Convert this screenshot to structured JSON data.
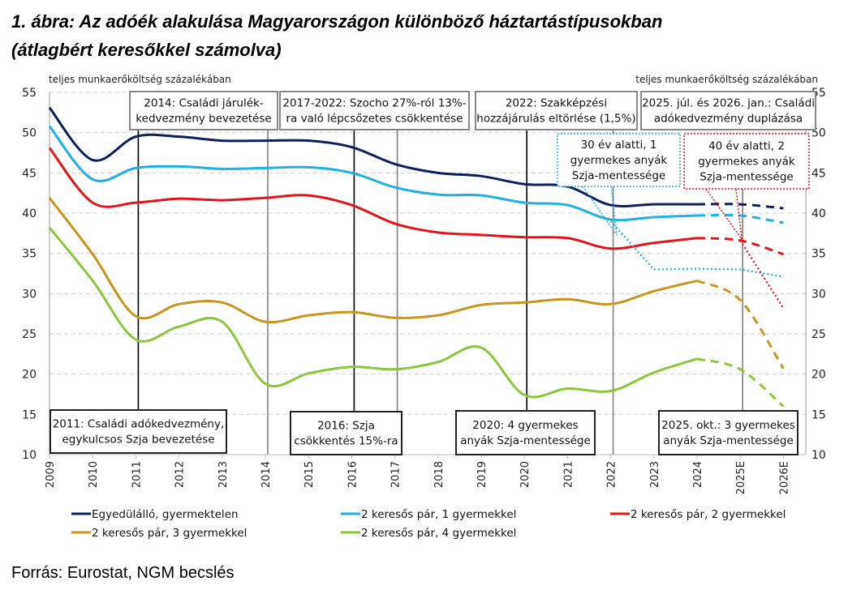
{
  "title_line1": "1. ábra: Az adóék alakulása Magyarországon különböző háztartástípusokban",
  "title_line2": "(átlagbért keresőkkel számolva)",
  "source": "Forrás: Eurostat, NGM becslés",
  "chart_data": {
    "type": "line",
    "ylabel_left": "teljes munkaerőköltség százalékában",
    "ylabel_right": "teljes munkaerőköltség százalékában",
    "ylim": [
      10,
      55
    ],
    "yticks": [
      10,
      15,
      20,
      25,
      30,
      35,
      40,
      45,
      50,
      55
    ],
    "grid": "horizontal dashed",
    "legend_position": "bottom",
    "categories": [
      "2009",
      "2010",
      "2011",
      "2012",
      "2013",
      "2014",
      "2015",
      "2016",
      "2017",
      "2018",
      "2019",
      "2020",
      "2021",
      "2022",
      "2023",
      "2024",
      "2025E",
      "2026E"
    ],
    "dashed_from": "2024",
    "series": [
      {
        "name": "Egyedülálló, gyermektelen",
        "color": "#0d1f5c",
        "values": [
          53.1,
          46.6,
          49.5,
          49.5,
          49.0,
          49.0,
          49.0,
          48.2,
          46.1,
          45.0,
          44.6,
          43.6,
          43.3,
          41.0,
          41.1,
          41.1,
          41.1,
          40.6
        ]
      },
      {
        "name": "2 keresős pár, 1 gyermekkel",
        "color": "#1fb0e6",
        "values": [
          50.8,
          44.2,
          45.6,
          45.8,
          45.5,
          45.6,
          45.7,
          45.0,
          43.2,
          42.3,
          42.2,
          41.3,
          41.0,
          39.2,
          39.5,
          39.7,
          39.7,
          38.8
        ]
      },
      {
        "name": "2 keresős pár, 2 gyermekkel",
        "color": "#e4141b",
        "values": [
          48.1,
          41.3,
          41.3,
          41.8,
          41.6,
          41.9,
          42.2,
          41.0,
          38.7,
          37.6,
          37.3,
          37.0,
          36.9,
          35.6,
          36.3,
          36.9,
          36.6,
          34.9
        ]
      },
      {
        "name": "2 keresős pár, 3 gyermekkel",
        "color": "#c8961e",
        "values": [
          41.9,
          34.9,
          27.2,
          28.7,
          28.9,
          26.5,
          27.3,
          27.7,
          27.0,
          27.3,
          28.6,
          28.9,
          29.3,
          28.7,
          30.3,
          31.6,
          29.2,
          20.7
        ]
      },
      {
        "name": "2 keresős pár, 4 gyermekkel",
        "color": "#8cc63e",
        "values": [
          38.2,
          31.6,
          24.3,
          25.9,
          26.5,
          18.8,
          20.1,
          20.9,
          20.6,
          21.5,
          23.3,
          17.4,
          18.2,
          17.9,
          20.2,
          21.9,
          20.6,
          16.0
        ]
      }
    ],
    "dotted_series": [
      {
        "color": "#1fb0e6",
        "categories": [
          "2022",
          "2023",
          "2024",
          "2025E",
          "2026E"
        ],
        "values": [
          39.0,
          33.0,
          33.1,
          33.0,
          32.1
        ]
      },
      {
        "color": "#e4141b",
        "categories": [
          "2025E",
          "2026E"
        ],
        "values": [
          36.6,
          28.2
        ]
      }
    ],
    "event_lines": [
      {
        "year": "2011",
        "color": "#000000"
      },
      {
        "year": "2014",
        "color": "#808080"
      },
      {
        "year": "2016",
        "color": "#000000"
      },
      {
        "year": "2017",
        "color": "#808080"
      },
      {
        "year": "2020",
        "color": "#000000"
      },
      {
        "year": "2022",
        "color": "#808080"
      },
      {
        "year": "2025E",
        "color": "#808080"
      }
    ],
    "annotations": {
      "a2014": [
        "2014: Családi járulék-",
        "kedvezmény  bevezetése"
      ],
      "a2017": [
        "2017-2022: Szocho  27%-ról 13%-",
        "ra való lépcsőzetes  csökkentése"
      ],
      "a2022": [
        "2022: Szakképzési",
        "hozzájárulás eltörlése (1,5%)"
      ],
      "a2025": [
        "2025. júl. és 2026. jan.: Családi",
        "adókedvezmény  duplázása"
      ],
      "a30": [
        "30 év alatti, 1",
        "gyermekes anyák",
        "Szja-mentessége"
      ],
      "a40": [
        "40 év alatti, 2",
        "gyermekes anyák",
        "Szja-mentessége"
      ],
      "a2011": [
        "2011: Családi adókedvezmény,",
        "egykulcsos Szja bevezetése"
      ],
      "a2016": [
        "2016: Szja",
        "csökkentés 15%-ra"
      ],
      "a2020": [
        "2020: 4 gyermekes",
        "anyák Szja-mentessége"
      ],
      "a2025okt": [
        "2025. okt.: 3 gyermekes",
        "anyák Szja-mentessége"
      ]
    }
  }
}
